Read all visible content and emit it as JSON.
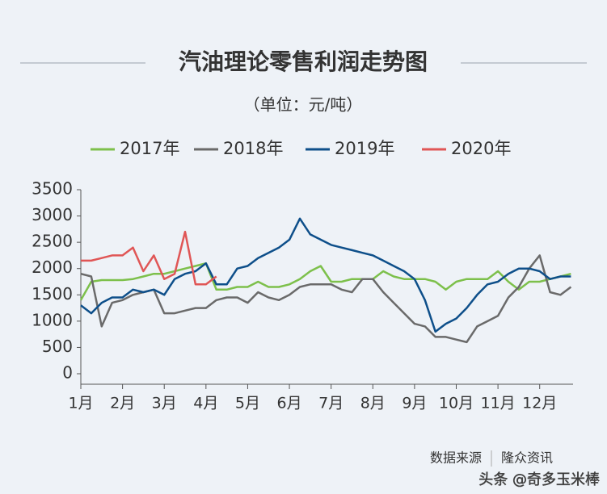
{
  "chart_data": {
    "type": "line",
    "title": "汽油理论零售利润走势图",
    "subtitle": "（单位：元/吨）",
    "source_label": "数据来源",
    "source": "隆众资讯",
    "watermark": "头条 @奇多玉米棒",
    "x": [
      1,
      1.25,
      1.5,
      1.75,
      2,
      2.25,
      2.5,
      2.75,
      3,
      3.25,
      3.5,
      3.75,
      4,
      4.25,
      4.5,
      4.75,
      5,
      5.25,
      5.5,
      5.75,
      6,
      6.25,
      6.5,
      6.75,
      7,
      7.25,
      7.5,
      7.75,
      8,
      8.25,
      8.5,
      8.75,
      9,
      9.25,
      9.5,
      9.75,
      10,
      10.25,
      10.5,
      10.75,
      11,
      11.25,
      11.5,
      11.75,
      12,
      12.25,
      12.5,
      12.75
    ],
    "xlim": [
      1,
      12.8
    ],
    "xticks": [
      {
        "value": 1,
        "label": "1月"
      },
      {
        "value": 2,
        "label": "2月"
      },
      {
        "value": 3,
        "label": "3月"
      },
      {
        "value": 4,
        "label": "4月"
      },
      {
        "value": 5,
        "label": "5月"
      },
      {
        "value": 6,
        "label": "6月"
      },
      {
        "value": 7,
        "label": "7月"
      },
      {
        "value": 8,
        "label": "8月"
      },
      {
        "value": 9,
        "label": "9月"
      },
      {
        "value": 10,
        "label": "10月"
      },
      {
        "value": 11,
        "label": "11月"
      },
      {
        "value": 12,
        "label": "12月"
      }
    ],
    "ylim": [
      0,
      3500
    ],
    "yticks": [
      0,
      500,
      1000,
      1500,
      2000,
      2500,
      3000,
      3500
    ],
    "series": [
      {
        "name": "2017年",
        "color": "#7dc04b",
        "values": [
          1400,
          1750,
          1780,
          1780,
          1780,
          1800,
          1850,
          1900,
          1900,
          1950,
          2000,
          2050,
          2100,
          1600,
          1600,
          1650,
          1650,
          1750,
          1650,
          1650,
          1700,
          1800,
          1950,
          2050,
          1750,
          1750,
          1800,
          1800,
          1800,
          1950,
          1850,
          1800,
          1800,
          1800,
          1750,
          1600,
          1750,
          1800,
          1800,
          1800,
          1950,
          1750,
          1600,
          1750,
          1750,
          1800,
          1850,
          1900
        ]
      },
      {
        "name": "2018年",
        "color": "#6a6a6a",
        "values": [
          1900,
          1850,
          900,
          1350,
          1400,
          1500,
          1550,
          1600,
          1150,
          1150,
          1200,
          1250,
          1250,
          1400,
          1450,
          1450,
          1350,
          1550,
          1450,
          1400,
          1500,
          1650,
          1700,
          1700,
          1700,
          1600,
          1550,
          1800,
          1800,
          1550,
          1350,
          1150,
          950,
          900,
          700,
          700,
          650,
          600,
          900,
          1000,
          1100,
          1450,
          1650,
          2000,
          2250,
          1550,
          1500,
          1650
        ]
      },
      {
        "name": "2019年",
        "color": "#0e4f8a",
        "values": [
          1300,
          1150,
          1350,
          1450,
          1450,
          1600,
          1550,
          1600,
          1500,
          1800,
          1900,
          1950,
          2100,
          1700,
          1700,
          2000,
          2050,
          2200,
          2300,
          2400,
          2550,
          2950,
          2650,
          2550,
          2450,
          2400,
          2350,
          2300,
          2250,
          2150,
          2050,
          1950,
          1800,
          1400,
          800,
          950,
          1050,
          1250,
          1500,
          1700,
          1750,
          1900,
          2000,
          2000,
          1950,
          1800,
          1850,
          1850
        ]
      },
      {
        "name": "2020年",
        "color": "#e05656",
        "values": [
          2150,
          2150,
          2200,
          2250,
          2250,
          2400,
          1950,
          2250,
          1800,
          1900,
          2700,
          1700,
          1700,
          1850,
          null,
          null,
          null,
          null,
          null,
          null,
          null,
          null,
          null,
          null,
          null,
          null,
          null,
          null,
          null,
          null,
          null,
          null,
          null,
          null,
          null,
          null,
          null,
          null,
          null,
          null,
          null,
          null,
          null,
          null,
          null,
          null,
          null,
          null
        ]
      }
    ]
  }
}
